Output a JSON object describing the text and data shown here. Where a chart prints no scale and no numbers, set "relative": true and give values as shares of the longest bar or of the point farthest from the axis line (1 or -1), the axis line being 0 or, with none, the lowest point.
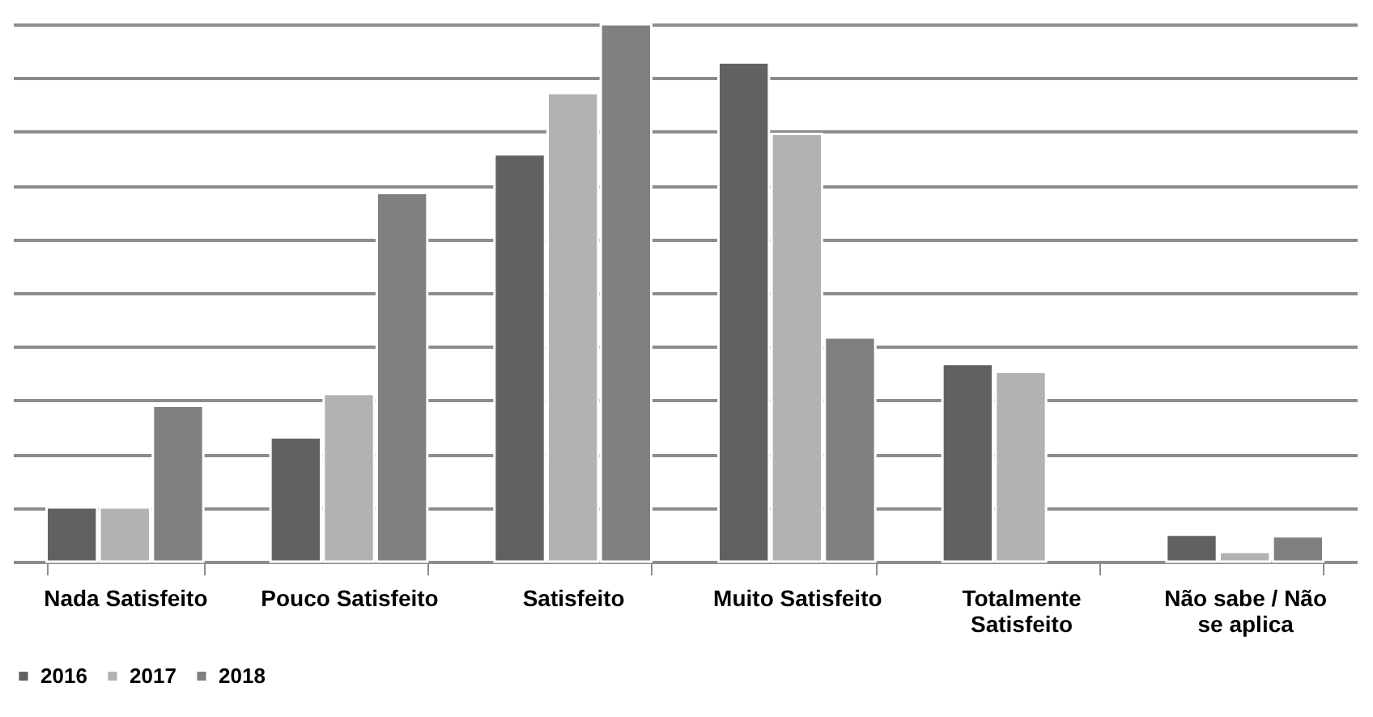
{
  "chart_data": {
    "type": "bar",
    "relative": true,
    "grid": "y",
    "legend": "bottom",
    "categories": [
      "Nada Satisfeito",
      "Pouco Satisfeito",
      "Satisfeito",
      "Muito Satisfeito",
      "Totalmente Satisfeito",
      "Não sabe / Não se aplica"
    ],
    "series": [
      {
        "name": "2016",
        "color": "#616161",
        "values": [
          0.101,
          0.231,
          0.758,
          0.929,
          0.368,
          0.05
        ]
      },
      {
        "name": "2017",
        "color": "#b2b2b2",
        "values": [
          0.101,
          0.312,
          0.872,
          0.796,
          0.353,
          0.018
        ]
      },
      {
        "name": "2018",
        "color": "#808080",
        "values": [
          0.29,
          0.686,
          1,
          0.417,
          null,
          0.047
        ]
      }
    ]
  }
}
